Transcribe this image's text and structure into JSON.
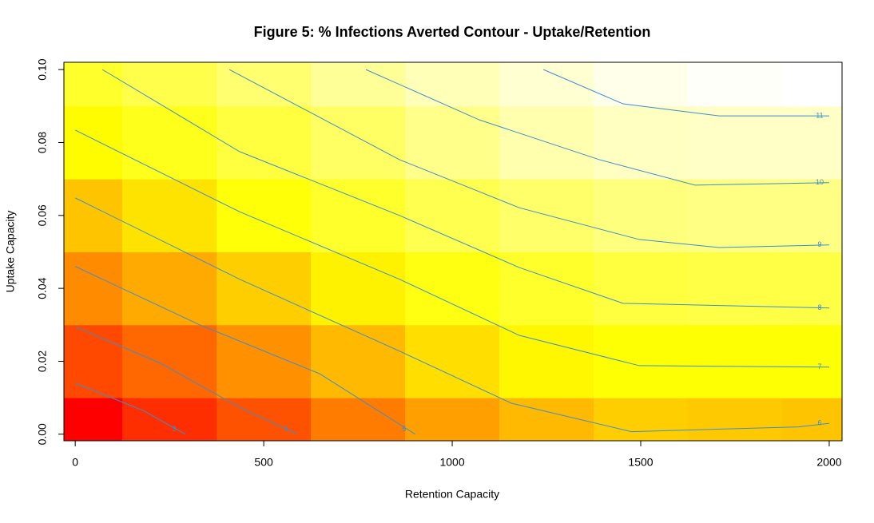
{
  "chart_data": {
    "type": "contour",
    "title": "Figure 5: % Infections Averted Contour - Uptake/Retention",
    "x_label": "Retention Capacity",
    "y_label": "Uptake Capacity",
    "xlim": [
      -30,
      2034
    ],
    "ylim": [
      -0.0018,
      0.102
    ],
    "xticks": [
      0,
      500,
      1000,
      1500,
      2000
    ],
    "yticks": [
      {
        "value": 0,
        "label": "0.00"
      },
      0.02,
      0.04,
      0.06,
      0.08,
      {
        "value": 0.1,
        "label": "0.10"
      }
    ],
    "colormap": [
      "#ff0000",
      "#ffff00",
      "#ffffff"
    ],
    "contour_color": "#3a8fd0",
    "grid": {
      "x": [
        0,
        250,
        500,
        750,
        1000,
        1250,
        1500,
        1750,
        2000
      ],
      "y": [
        0,
        0.02,
        0.04,
        0.06,
        0.08,
        0.1
      ],
      "z": [
        [
          2.0,
          2.9,
          3.6,
          4.4,
          5.1,
          5.6,
          6.0,
          5.9,
          5.8
        ],
        [
          3.4,
          4.0,
          4.8,
          5.6,
          6.3,
          6.8,
          7.0,
          7.0,
          7.0
        ],
        [
          4.7,
          5.3,
          6.0,
          6.7,
          7.3,
          7.8,
          8.2,
          8.3,
          8.3
        ],
        [
          5.8,
          6.4,
          7.1,
          7.8,
          8.5,
          9.0,
          9.4,
          9.5,
          9.5
        ],
        [
          6.9,
          7.5,
          8.2,
          8.9,
          9.6,
          10.3,
          10.7,
          10.8,
          10.8
        ],
        [
          7.8,
          8.4,
          9.1,
          9.9,
          10.5,
          11.0,
          11.5,
          11.8,
          11.9
        ]
      ]
    },
    "contours": [
      {
        "level": 3,
        "x": [
          0,
          180,
          292
        ],
        "y": [
          0.014,
          0.0065,
          0
        ]
      },
      {
        "level": 4,
        "x": [
          0,
          225,
          436,
          589
        ],
        "y": [
          0.0295,
          0.0195,
          0.0074,
          0
        ]
      },
      {
        "level": 5,
        "x": [
          0,
          330,
          648,
          902
        ],
        "y": [
          0.046,
          0.03,
          0.0166,
          0
        ]
      },
      {
        "level": 6,
        "x": [
          0,
          436,
          860,
          1157,
          1475,
          1919,
          2000
        ],
        "y": [
          0.0648,
          0.0425,
          0.0228,
          0.0085,
          0.0007,
          0.002,
          0.003
        ]
      },
      {
        "level": 7,
        "x": [
          0,
          436,
          860,
          1178,
          1496,
          2000
        ],
        "y": [
          0.0834,
          0.061,
          0.0425,
          0.0271,
          0.0188,
          0.0184
        ]
      },
      {
        "level": 8,
        "x": [
          72,
          436,
          860,
          1178,
          1453,
          2000
        ],
        "y": [
          0.1,
          0.0775,
          0.06,
          0.0457,
          0.0359,
          0.0346
        ]
      },
      {
        "level": 9,
        "x": [
          409,
          860,
          1178,
          1496,
          1708,
          2000
        ],
        "y": [
          0.1,
          0.0753,
          0.0621,
          0.0534,
          0.0512,
          0.0519
        ]
      },
      {
        "level": 10,
        "x": [
          771,
          1072,
          1390,
          1644,
          2000
        ],
        "y": [
          0.1,
          0.0862,
          0.0753,
          0.0683,
          0.069
        ]
      },
      {
        "level": 11,
        "x": [
          1242,
          1453,
          1708,
          2000
        ],
        "y": [
          0.1,
          0.0906,
          0.0873,
          0.0873
        ]
      }
    ]
  }
}
